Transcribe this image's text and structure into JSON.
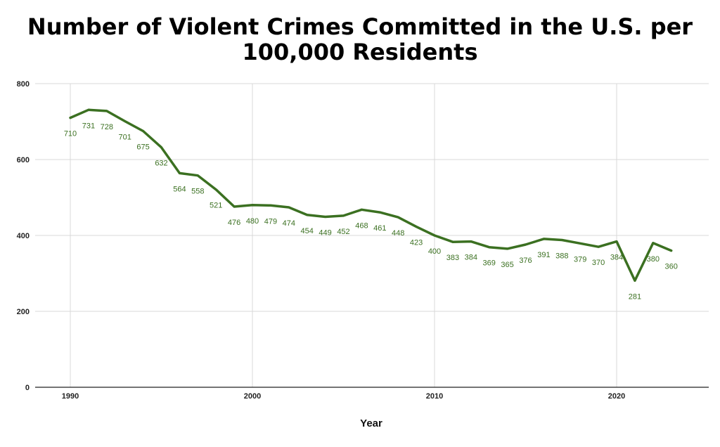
{
  "chart_data": {
    "type": "line",
    "title_lines": [
      "Number of Violent Crimes Committed in the U.S. per",
      "100,000 Residents"
    ],
    "xlabel": "Year",
    "ylabel": "",
    "xlim": [
      1990,
      2025
    ],
    "ylim": [
      0,
      800
    ],
    "x_ticks": [
      1990,
      2000,
      2010,
      2020
    ],
    "y_ticks": [
      0,
      200,
      400,
      600,
      800
    ],
    "grid": true,
    "line_color": "#3b7021",
    "x": [
      1990,
      1991,
      1992,
      1993,
      1994,
      1995,
      1996,
      1997,
      1998,
      1999,
      2000,
      2001,
      2002,
      2003,
      2004,
      2005,
      2006,
      2007,
      2008,
      2009,
      2010,
      2011,
      2012,
      2013,
      2014,
      2015,
      2016,
      2017,
      2018,
      2019,
      2020,
      2021,
      2022,
      2023
    ],
    "series": [
      {
        "values": [
          710,
          731,
          728,
          701,
          675,
          632,
          564,
          558,
          521,
          476,
          480,
          479,
          474,
          454,
          449,
          452,
          468,
          461,
          448,
          423,
          400,
          383,
          384,
          369,
          365,
          376,
          391,
          388,
          379,
          370,
          384,
          281,
          380,
          360
        ]
      }
    ]
  }
}
